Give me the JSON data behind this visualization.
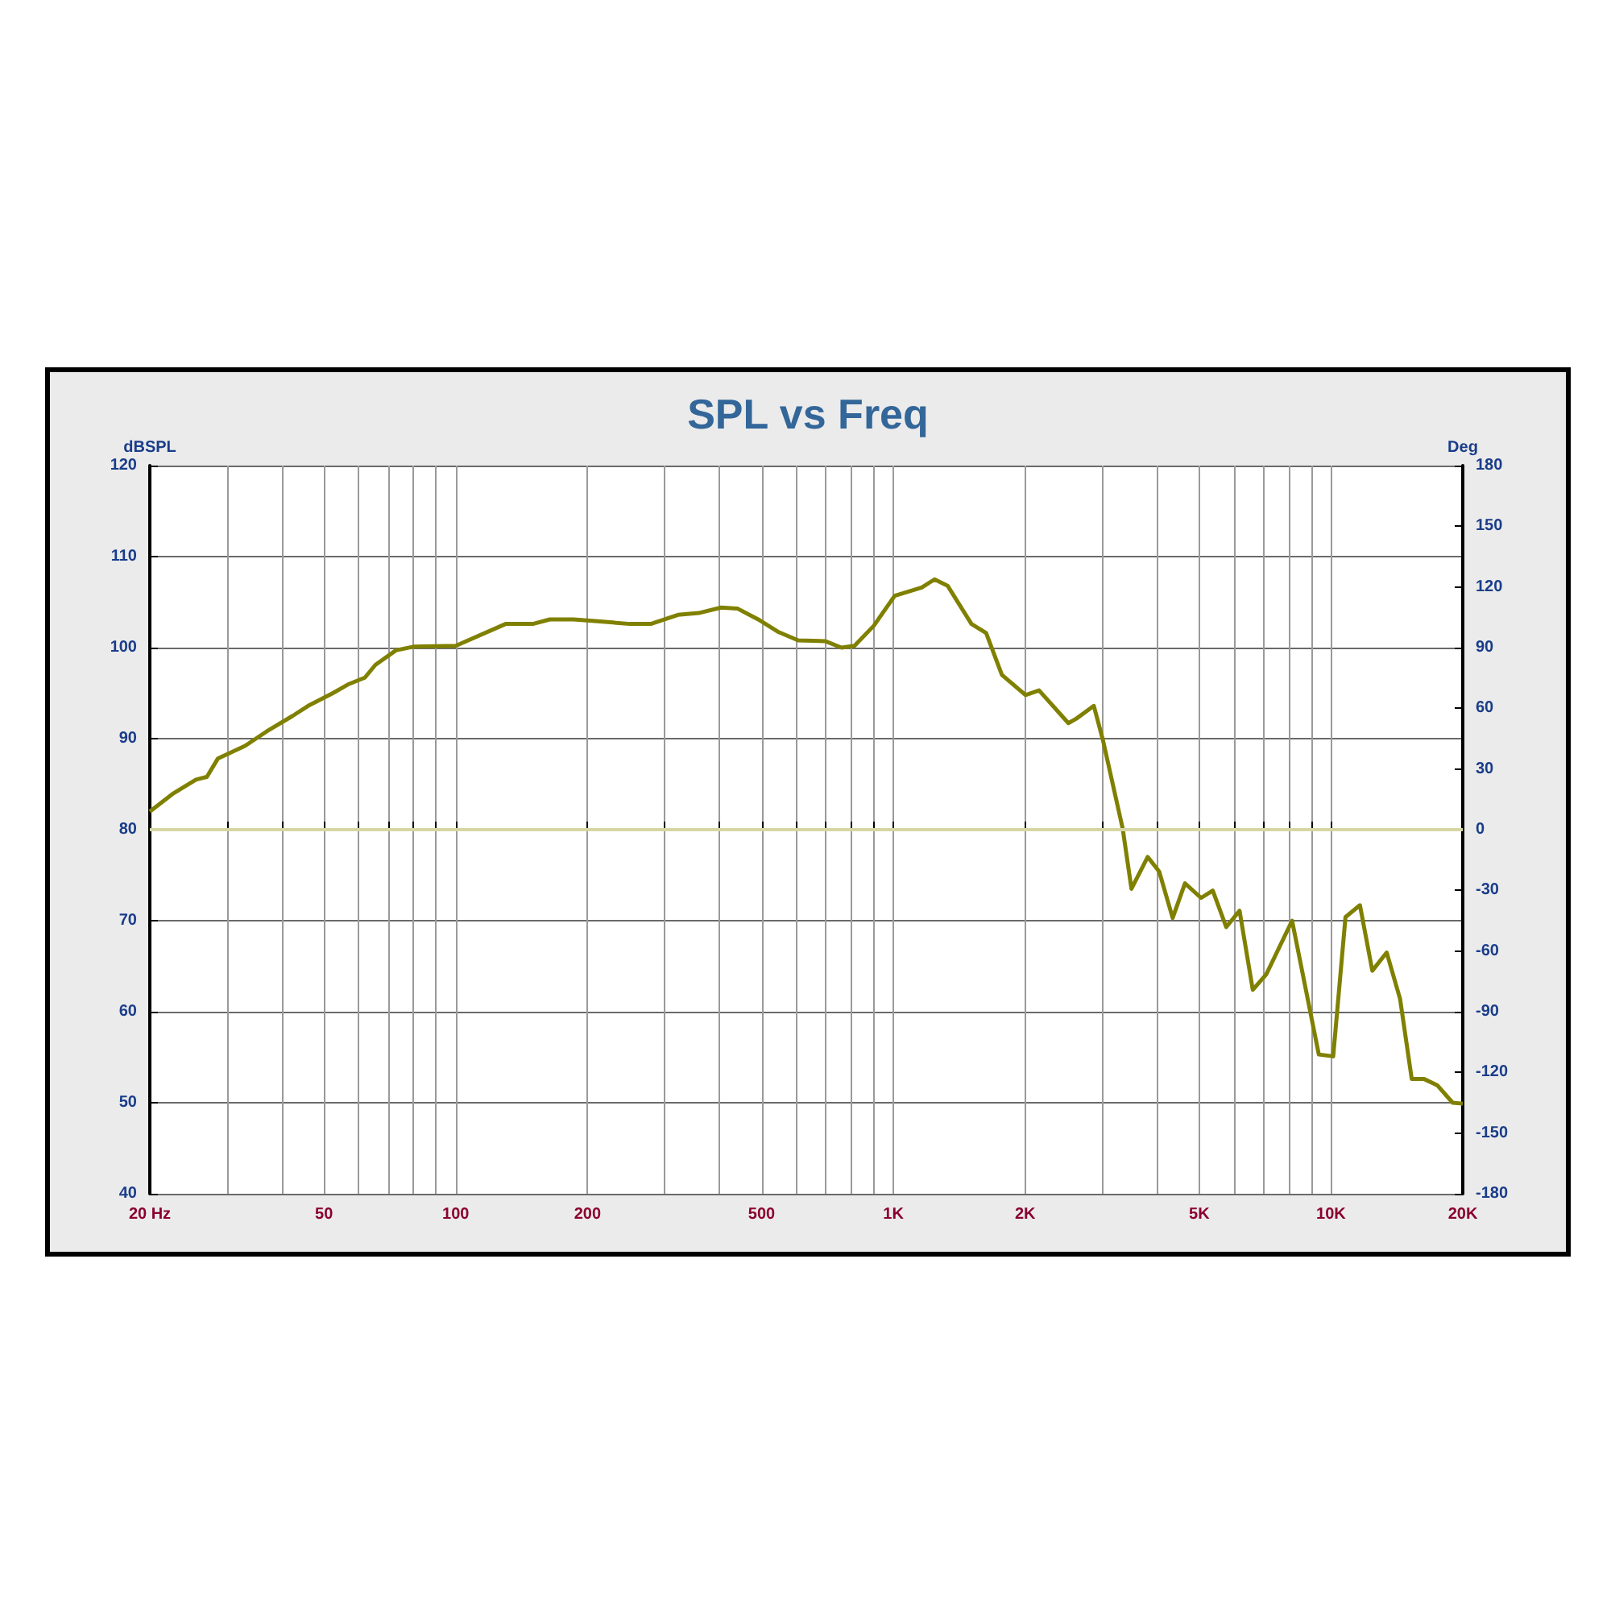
{
  "chart_data": {
    "type": "line",
    "title": "SPL vs Freq",
    "ylabel": "dBSPL",
    "y2label": "Deg",
    "log": "x",
    "grid": true,
    "marker": "none",
    "line_style": "solid",
    "xlim": [
      20,
      20000
    ],
    "xticks": [
      {
        "value": 20,
        "label": "20 Hz"
      },
      {
        "value": 30,
        "label": null
      },
      {
        "value": 40,
        "label": null
      },
      50,
      {
        "value": 60,
        "label": null
      },
      {
        "value": 70,
        "label": null
      },
      {
        "value": 80,
        "label": null
      },
      {
        "value": 90,
        "label": null
      },
      100,
      200,
      {
        "value": 300,
        "label": null
      },
      {
        "value": 400,
        "label": null
      },
      500,
      {
        "value": 600,
        "label": null
      },
      {
        "value": 700,
        "label": null
      },
      {
        "value": 800,
        "label": null
      },
      {
        "value": 900,
        "label": null
      },
      {
        "value": 1000,
        "label": "1K"
      },
      {
        "value": 2000,
        "label": "2K"
      },
      {
        "value": 3000,
        "label": null
      },
      {
        "value": 4000,
        "label": null
      },
      {
        "value": 5000,
        "label": "5K"
      },
      {
        "value": 6000,
        "label": null
      },
      {
        "value": 7000,
        "label": null
      },
      {
        "value": 8000,
        "label": null
      },
      {
        "value": 9000,
        "label": null
      },
      {
        "value": 10000,
        "label": "10K"
      },
      {
        "value": 20000,
        "label": "20K"
      }
    ],
    "ylim": [
      40,
      120
    ],
    "yticks": [
      40,
      50,
      60,
      70,
      80,
      90,
      100,
      110,
      120
    ],
    "y2lim": [
      -180,
      180
    ],
    "y2ticks": [
      -180,
      -150,
      -120,
      -90,
      -60,
      -30,
      0,
      30,
      60,
      90,
      120,
      150,
      180
    ],
    "ref_lines": [
      {
        "axis": "y2",
        "value": 0,
        "color": "#d6d6a4"
      }
    ],
    "series": [
      {
        "color": "#808000",
        "x": [
          20,
          22.5,
          25.5,
          27,
          28.6,
          33,
          37,
          42.4,
          46,
          52.4,
          57,
          62,
          65.5,
          73,
          80,
          100,
          130,
          150,
          164,
          186,
          211,
          250,
          279,
          322,
          359,
          404,
          440,
          491,
          547,
          606,
          700,
          761,
          815,
          902,
          1007,
          1161,
          1242,
          1330,
          1508,
          1629,
          1770,
          2004,
          2152,
          2511,
          2619,
          2871,
          3013,
          3342,
          3499,
          3811,
          4049,
          4346,
          4637,
          5047,
          5367,
          5761,
          6180,
          6625,
          7112,
          8147,
          9376,
          10114,
          10790,
          11642,
          12425,
          13400,
          14380,
          15290,
          16320,
          17510,
          18960,
          20000
        ],
        "values": [
          82,
          83.9,
          85.5,
          85.8,
          87.8,
          89.2,
          90.8,
          92.5,
          93.6,
          95,
          96,
          96.7,
          98.1,
          99.7,
          100.1,
          100.2,
          102.6,
          102.6,
          103.1,
          103.1,
          102.9,
          102.6,
          102.6,
          103.6,
          103.8,
          104.4,
          104.3,
          103.1,
          101.7,
          100.8,
          100.7,
          100,
          100.2,
          102.4,
          105.7,
          106.6,
          107.5,
          106.8,
          102.6,
          101.6,
          97,
          94.8,
          95.3,
          91.7,
          92.2,
          93.6,
          89.8,
          80.1,
          73.5,
          77,
          75.4,
          70.3,
          74.1,
          72.5,
          73.3,
          69.3,
          71.1,
          62.4,
          64.1,
          70,
          55.3,
          55.1,
          70.4,
          71.7,
          64.5,
          66.5,
          61.4,
          52.6,
          52.6,
          51.9,
          50,
          49.9
        ]
      }
    ]
  }
}
